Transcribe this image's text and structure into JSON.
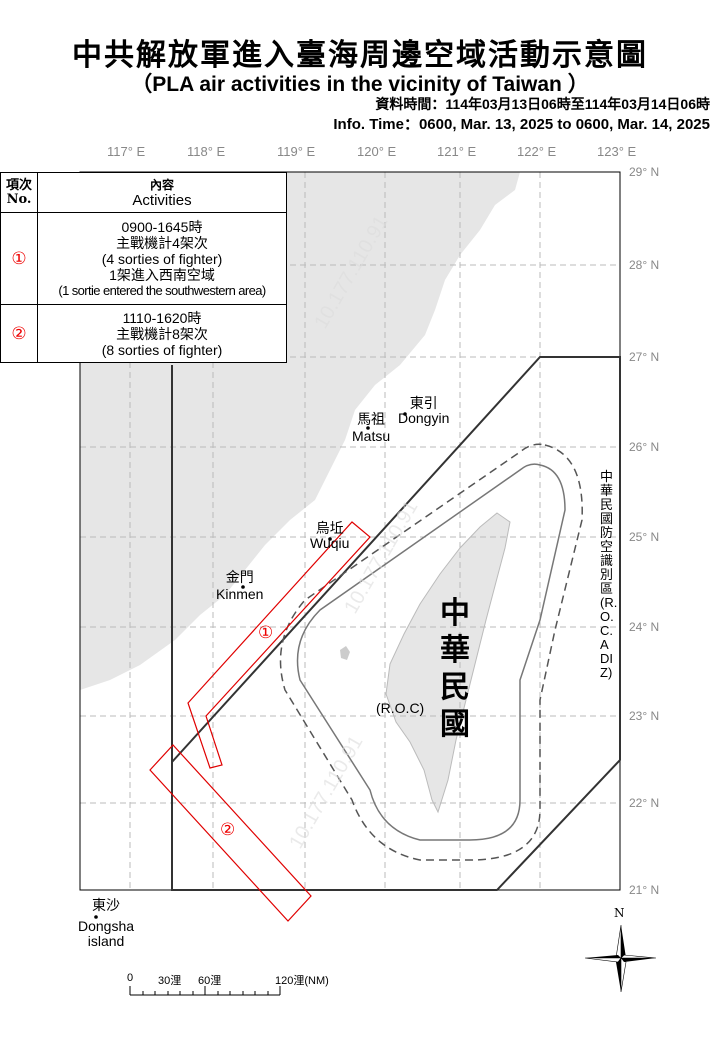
{
  "header": {
    "title": "中共解放軍進入臺海周邊空域活動示意圖",
    "subtitle": "（PLA air activities in the vicinity of Taiwan ）",
    "time_zh": "資料時間：114年03月13日06時至114年03月14日06時",
    "time_en": "Info. Time：0600, Mar. 13, 2025 to 0600, Mar. 14, 2025"
  },
  "axes": {
    "longitudes": [
      "117° E",
      "118° E",
      "119° E",
      "120° E",
      "121° E",
      "122° E",
      "123° E"
    ],
    "latitudes": [
      "29° N",
      "28° N",
      "27° N",
      "26° N",
      "25° N",
      "24° N",
      "23° N",
      "22° N",
      "21° N"
    ]
  },
  "table": {
    "header_no": "項次\nNo.",
    "header_no_zh": "項次",
    "header_no_en": "No.",
    "header_act_zh": "內容",
    "header_act_en": "Activities",
    "rows": [
      {
        "no": "①",
        "lines": [
          "0900-1645時",
          "主戰機計4架次",
          "(4 sorties of fighter)",
          "1架進入西南空域",
          "(1 sortie entered the southwestern area)"
        ]
      },
      {
        "no": "②",
        "lines": [
          "1110-1620時",
          "主戰機計8架次",
          "(8 sorties of fighter)"
        ]
      }
    ]
  },
  "places": {
    "dongyin": {
      "zh": "東引",
      "en": "Dongyin"
    },
    "matsu": {
      "zh": "馬祖",
      "en": "Matsu"
    },
    "wuqiu": {
      "zh": "烏坵",
      "en": "Wuqiu"
    },
    "kinmen": {
      "zh": "金門",
      "en": "Kinmen"
    },
    "roc": {
      "zh": "中華民國",
      "en": "(R.O.C)"
    },
    "dongsha": {
      "zh": "東沙",
      "en1": "Dongsha",
      "en2": "island"
    },
    "adiz": "中華民國防空識別區(R.O.C. ADIZ)"
  },
  "routes": [
    {
      "label": "①",
      "color": "#e00000"
    },
    {
      "label": "②",
      "color": "#e00000"
    }
  ],
  "scale": {
    "ticks": [
      "0",
      "30浬",
      "60浬",
      "120浬(NM)"
    ]
  },
  "compass": "N",
  "watermark": "10.177.110.91",
  "colors": {
    "land": "#e6e6e6",
    "route": "#e00000",
    "adiz": "#333333"
  }
}
